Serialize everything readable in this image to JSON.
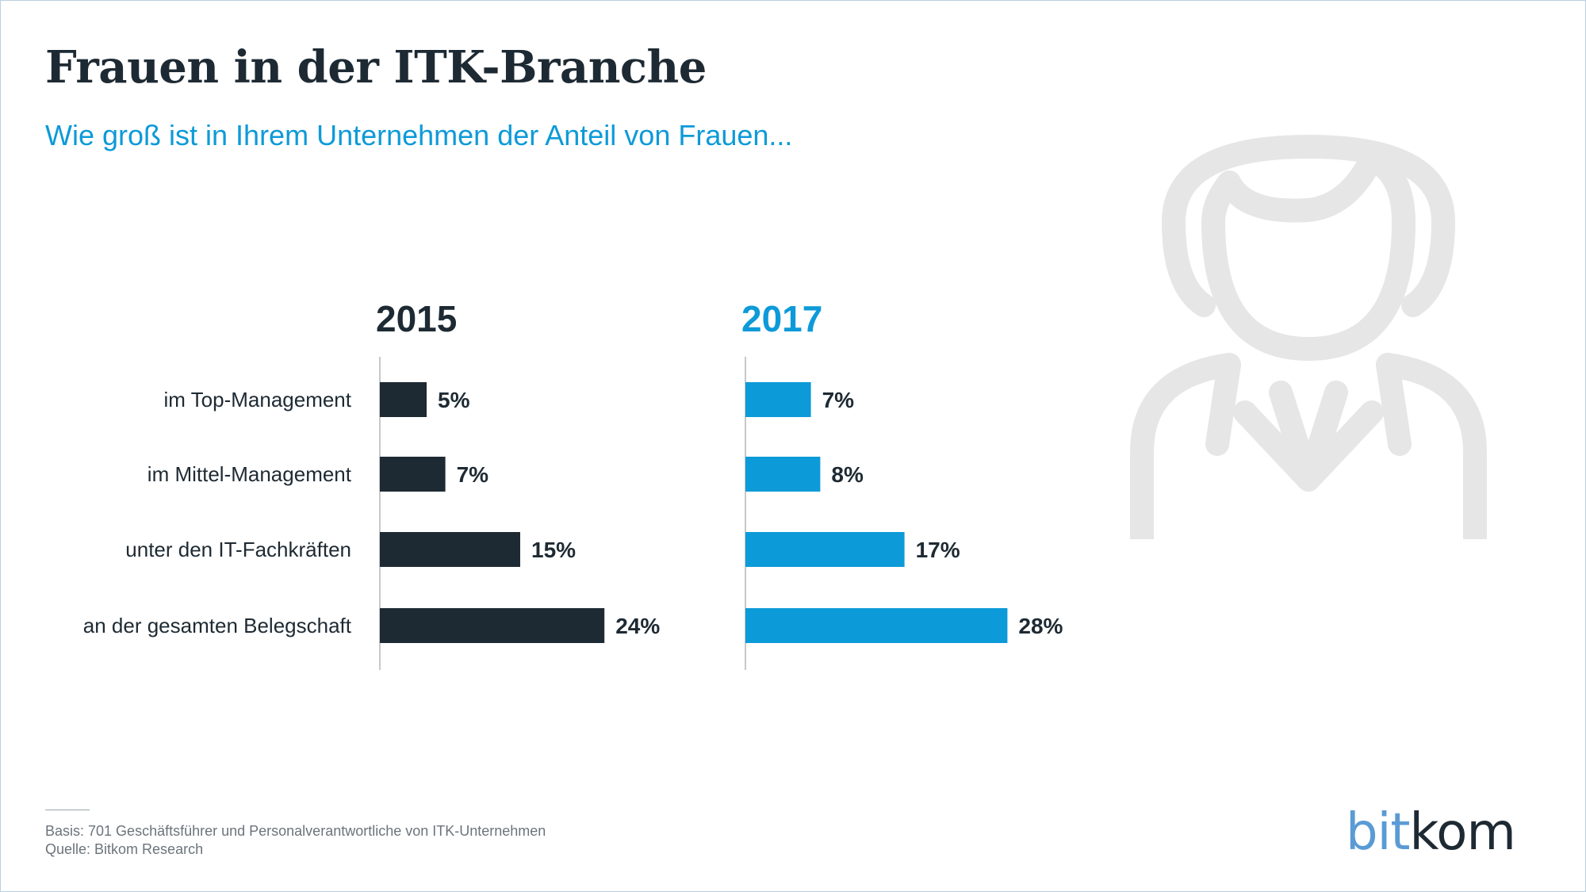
{
  "header": {
    "title": "Frauen in der ITK-Branche",
    "subtitle": "Wie groß ist in Ihrem Unternehmen der Anteil von Frauen..."
  },
  "chart_data": {
    "type": "bar",
    "orientation": "horizontal",
    "categories": [
      "im Top-Management",
      "im Mittel-Management",
      "unter den IT-Fachkräften",
      "an der gesamten Belegschaft"
    ],
    "series": [
      {
        "name": "2015",
        "values": [
          5,
          7,
          15,
          24
        ],
        "labels": [
          "5%",
          "7%",
          "15%",
          "24%"
        ],
        "color": "#1e2a33"
      },
      {
        "name": "2017",
        "values": [
          7,
          8,
          17,
          28
        ],
        "labels": [
          "7%",
          "8%",
          "17%",
          "28%"
        ],
        "color": "#0d9ad8"
      }
    ],
    "unit": "%",
    "grid": false,
    "legend": "panel headings"
  },
  "footer": {
    "basis": "Basis: 701 Geschäftsführer und Personalverantwortliche von ITK-Unternehmen",
    "source": "Quelle: Bitkom Research"
  },
  "logo": {
    "part1": "bit",
    "part2": "kom"
  },
  "icons": {
    "illustration": "woman-silhouette-icon"
  },
  "colors": {
    "dark": "#1e2a33",
    "accent": "#0d9ad8",
    "figure": "#e6e6e6"
  }
}
